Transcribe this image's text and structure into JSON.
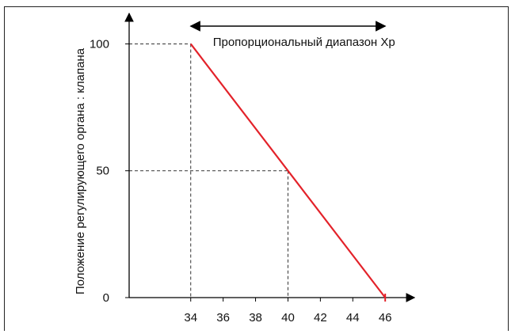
{
  "chart_data": {
    "type": "line",
    "ylabel": "Положение регулирующего органа : клапана",
    "xlabel": "",
    "title": "",
    "x_ticks": [
      34,
      36,
      38,
      40,
      42,
      44,
      46
    ],
    "y_ticks": [
      0,
      50,
      100
    ],
    "xlim": [
      30.2,
      47.8
    ],
    "ylim": [
      0,
      112
    ],
    "series": [
      {
        "x": [
          34,
          46
        ],
        "y": [
          100,
          0
        ],
        "color": "#e3222a"
      }
    ],
    "guides": [
      {
        "x": 34,
        "y": 100
      },
      {
        "x": 40,
        "y": 50
      }
    ],
    "range_annotation": {
      "label": "Пропорциональный диапазон Xp",
      "from": 34,
      "to": 46,
      "y": 107
    },
    "grid": false,
    "colors": {
      "line": "#e3222a",
      "axis": "#000000",
      "guide": "#333333"
    }
  }
}
